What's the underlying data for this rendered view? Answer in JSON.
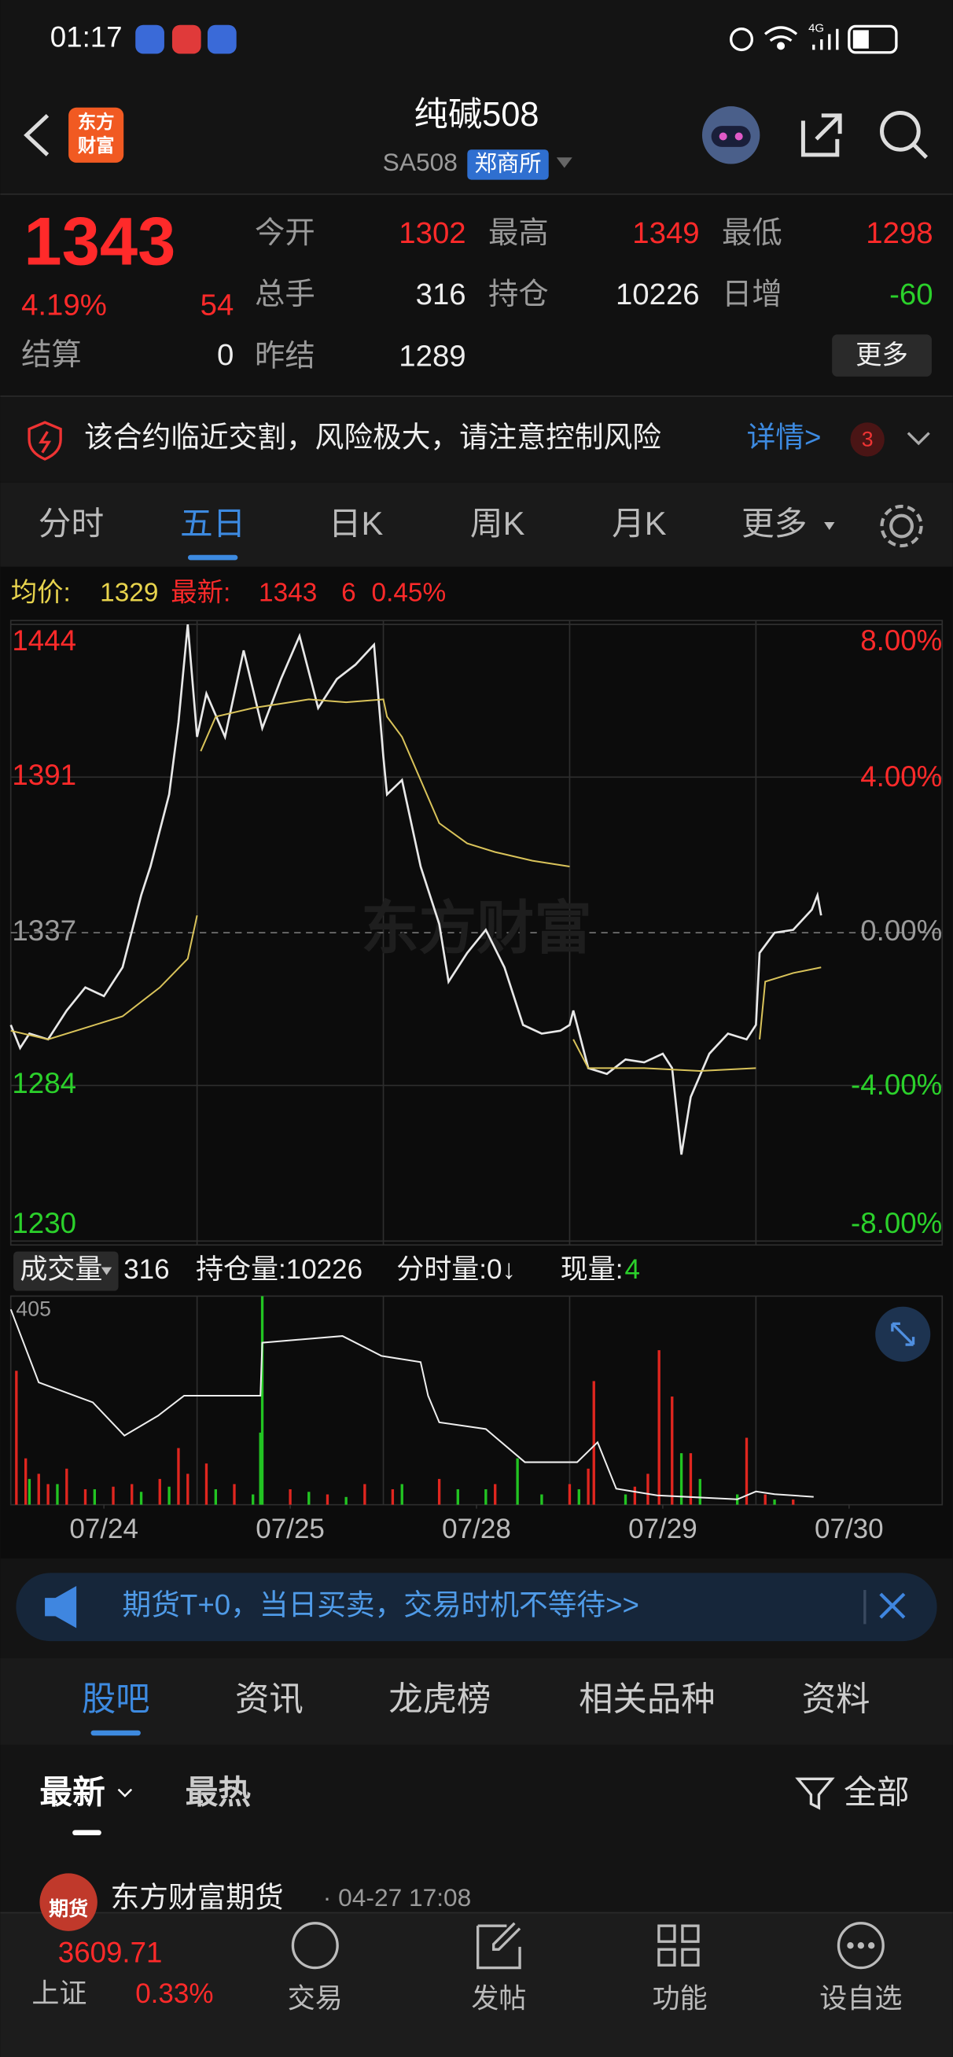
{
  "status_bar": {
    "time": "01:17",
    "network": "4G"
  },
  "header": {
    "logo": [
      "东方",
      "财富"
    ],
    "title": "纯碱508",
    "code": "SA508",
    "exchange": "郑商所"
  },
  "quote": {
    "price": "1343",
    "change_pct": "4.19%",
    "change": "54",
    "price_color": "#ff2a2a",
    "settlement": {
      "label": "结算",
      "value": "0",
      "color": "#eeeeee"
    },
    "fields": [
      {
        "label": "今开",
        "value": "1302",
        "color": "#ff2a2a"
      },
      {
        "label": "最高",
        "value": "1349",
        "color": "#ff2a2a"
      },
      {
        "label": "最低",
        "value": "1298",
        "color": "#ff2a2a"
      },
      {
        "label": "总手",
        "value": "316",
        "color": "#eeeeee"
      },
      {
        "label": "持仓",
        "value": "10226",
        "color": "#eeeeee"
      },
      {
        "label": "日增",
        "value": "-60",
        "color": "#2bd12b"
      },
      {
        "label": "昨结",
        "value": "1289",
        "color": "#eeeeee"
      }
    ],
    "more": "更多"
  },
  "alert": {
    "text": "该合约临近交割，风险极大，请注意控制风险",
    "link": "详情>",
    "count": "3"
  },
  "tabs": {
    "items": [
      "分时",
      "五日",
      "日K",
      "周K",
      "月K",
      "更多"
    ],
    "active": 1
  },
  "price_info": {
    "avg_label": "均价:",
    "avg": "1329",
    "latest_label": "最新:",
    "latest": "1343",
    "change": "6",
    "change_pct": "0.45%"
  },
  "watermark": "东方财富",
  "volume_info": {
    "label": "成交量",
    "volume": "316",
    "open_interest": "持仓量:10226",
    "tick_volume": "分时量:0↓",
    "current_label": "现量:",
    "current": "4"
  },
  "chart_data": [
    {
      "type": "line",
      "xlim": [
        0,
        5
      ],
      "ylim": [
        1230,
        1444
      ],
      "yticks": [
        1444,
        1391,
        1337,
        1284,
        1230
      ],
      "y2lim": [
        -8,
        8
      ],
      "y2ticks": [
        {
          "value": 8,
          "label": "8.00%"
        },
        {
          "value": 4,
          "label": "4.00%"
        },
        {
          "value": 0,
          "label": "0.00%"
        },
        {
          "value": -4,
          "label": "-4.00%"
        },
        {
          "value": -8,
          "label": "-8.00%"
        }
      ],
      "series": [
        {
          "color": "#e8e8e8",
          "x": [
            0,
            0.05,
            0.1,
            0.2,
            0.3,
            0.4,
            0.5,
            0.6,
            0.7,
            0.75,
            0.85,
            0.9,
            0.95,
            1.0,
            1.05,
            1.15,
            1.25,
            1.35,
            1.45,
            1.55,
            1.65,
            1.75,
            1.85,
            1.95,
            2.0,
            2.02,
            2.1,
            2.2,
            2.3,
            2.35,
            2.45,
            2.55,
            2.65,
            2.75,
            2.85,
            2.95,
            3.0,
            3.02,
            3.1,
            3.2,
            3.3,
            3.4,
            3.5,
            3.55,
            3.6,
            3.65,
            3.75,
            3.85,
            3.95,
            4.0,
            4.02,
            4.1,
            4.2,
            4.3,
            4.33,
            4.35
          ],
          "values": [
            1305,
            1297,
            1302,
            1300,
            1310,
            1318,
            1315,
            1325,
            1350,
            1360,
            1385,
            1410,
            1444,
            1405,
            1420,
            1405,
            1435,
            1408,
            1425,
            1440,
            1415,
            1425,
            1430,
            1437,
            1398,
            1385,
            1390,
            1360,
            1340,
            1320,
            1330,
            1338,
            1325,
            1305,
            1302,
            1303,
            1305,
            1310,
            1290,
            1288,
            1293,
            1292,
            1295,
            1290,
            1260,
            1280,
            1295,
            1302,
            1300,
            1305,
            1330,
            1337,
            1338,
            1345,
            1350,
            1343
          ]
        },
        {
          "color": "#d9c35a",
          "x": [
            0,
            0.2,
            0.4,
            0.6,
            0.8,
            0.95,
            1.0,
            1.0,
            1.02,
            1.1,
            1.3,
            1.6,
            1.8,
            2.0,
            2.02,
            2.1,
            2.2,
            2.3,
            2.45,
            2.6,
            2.8,
            3.0,
            3.0,
            3.02,
            3.1,
            3.4,
            3.7,
            4.0,
            4.0,
            4.02,
            4.05,
            4.2,
            4.35
          ],
          "values": [
            1303,
            1300,
            1304,
            1308,
            1318,
            1328,
            1343,
            null,
            1400,
            1412,
            1415,
            1418,
            1417,
            1418,
            1412,
            1405,
            1390,
            1375,
            1368,
            1365,
            1362,
            1360,
            null,
            1300,
            1290,
            1290,
            1289,
            1290,
            null,
            1300,
            1320,
            1323,
            1325
          ]
        }
      ]
    },
    {
      "type": "bar",
      "xlim": [
        0,
        5
      ],
      "ylim": [
        0,
        405
      ],
      "yticks": [
        405
      ],
      "xticks": [
        {
          "value": 0.5,
          "label": "07/24"
        },
        {
          "value": 1.5,
          "label": "07/25"
        },
        {
          "value": 2.5,
          "label": "07/28"
        },
        {
          "value": 3.5,
          "label": "07/29"
        },
        {
          "value": 4.5,
          "label": "07/30"
        }
      ],
      "y2lim": [
        10000,
        16000
      ],
      "series": [
        {
          "color": "#e0261f",
          "x": [
            0.03,
            0.08,
            0.15,
            0.2,
            0.3,
            0.4,
            0.55,
            0.65,
            0.8,
            0.9,
            0.95,
            1.05,
            1.2,
            1.5,
            1.7,
            1.9,
            2.05,
            2.3,
            2.6,
            3.0,
            3.1,
            3.13,
            3.35,
            3.42,
            3.48,
            3.55,
            3.65,
            3.95,
            4.05,
            4.2
          ],
          "values": [
            260,
            90,
            60,
            40,
            70,
            30,
            35,
            40,
            50,
            110,
            60,
            80,
            40,
            30,
            20,
            40,
            30,
            50,
            40,
            40,
            70,
            240,
            35,
            60,
            300,
            210,
            100,
            130,
            20,
            10
          ]
        },
        {
          "color": "#22c422",
          "x": [
            0.1,
            0.25,
            0.45,
            0.7,
            0.85,
            1.1,
            1.3,
            1.34,
            1.35,
            1.6,
            1.8,
            2.1,
            2.4,
            2.55,
            2.72,
            2.85,
            3.05,
            3.3,
            3.6,
            3.7,
            3.9,
            4.1
          ],
          "values": [
            50,
            40,
            30,
            25,
            35,
            30,
            20,
            140,
            405,
            25,
            15,
            40,
            30,
            30,
            90,
            20,
            30,
            20,
            100,
            50,
            20,
            10
          ]
        },
        {
          "type": "line",
          "axis": "y2",
          "color": "#eeeeee",
          "x": [
            0,
            0.15,
            0.44,
            0.61,
            0.79,
            0.93,
            1.34,
            1.35,
            1.78,
            1.99,
            2.2,
            2.24,
            2.3,
            2.55,
            2.76,
            3.04,
            3.15,
            3.25,
            3.47,
            3.9,
            4.0,
            4.1,
            4.31
          ],
          "values": [
            15618,
            13516,
            12943,
            11987,
            12560,
            13134,
            13134,
            14662,
            14854,
            14280,
            14100,
            13134,
            12369,
            12178,
            11223,
            11223,
            11796,
            10459,
            10268,
            10153,
            10382,
            10300,
            10226
          ]
        }
      ]
    }
  ],
  "banner": "期货T+0，当日买卖，交易时机不等待>>",
  "sub_tabs": {
    "items": [
      "股吧",
      "资讯",
      "龙虎榜",
      "相关品种",
      "资料"
    ],
    "active": 0
  },
  "filters": {
    "sort": [
      "最新",
      "最热"
    ],
    "scope": "全部"
  },
  "post": {
    "avatar": "期货",
    "author": "东方财富期货",
    "time": "· 04-27 17:08"
  },
  "bottom_nav": {
    "index_value": "3609.71",
    "index_name": "上证",
    "index_change": "0.33%",
    "items": [
      "交易",
      "发帖",
      "功能",
      "设自选"
    ]
  }
}
